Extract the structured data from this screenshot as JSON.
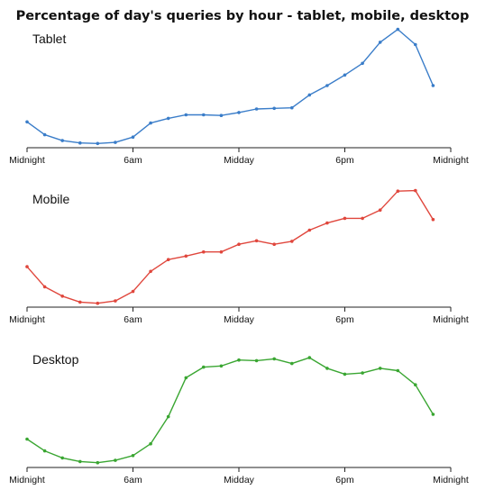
{
  "title": "Percentage of day's queries by hour - tablet, mobile, desktop",
  "chart_data": [
    {
      "type": "line",
      "title": "Tablet",
      "color": "#3a7dc9",
      "x": [
        0,
        1,
        2,
        3,
        4,
        5,
        6,
        7,
        8,
        9,
        10,
        11,
        12,
        13,
        14,
        15,
        16,
        17,
        18,
        19,
        20,
        21,
        22,
        23
      ],
      "x_ticks": [
        {
          "x": 0,
          "label": "Midnight"
        },
        {
          "x": 6,
          "label": "6am"
        },
        {
          "x": 12,
          "label": "Midday"
        },
        {
          "x": 18,
          "label": "6pm"
        },
        {
          "x": 24,
          "label": "Midnight"
        }
      ],
      "xlim": [
        0,
        24
      ],
      "ylim": [
        0,
        100
      ],
      "values": [
        19,
        8,
        3,
        1,
        0.5,
        1.5,
        6,
        18,
        22,
        25,
        25,
        24.5,
        27,
        30,
        30.5,
        31,
        42,
        50,
        59,
        69,
        87,
        98,
        85,
        50
      ],
      "grid": false
    },
    {
      "type": "line",
      "title": "Mobile",
      "color": "#e0473d",
      "x": [
        0,
        1,
        2,
        3,
        4,
        5,
        6,
        7,
        8,
        9,
        10,
        11,
        12,
        13,
        14,
        15,
        16,
        17,
        18,
        19,
        20,
        21,
        22,
        23
      ],
      "x_ticks": [
        {
          "x": 0,
          "label": "Midnight"
        },
        {
          "x": 6,
          "label": "6am"
        },
        {
          "x": 12,
          "label": "Midday"
        },
        {
          "x": 18,
          "label": "6pm"
        },
        {
          "x": 24,
          "label": "Midnight"
        }
      ],
      "xlim": [
        0,
        24
      ],
      "ylim": [
        0,
        100
      ],
      "values": [
        32,
        15,
        7,
        2,
        1,
        3,
        11,
        28,
        38,
        41,
        44.5,
        44.5,
        51,
        54,
        51,
        53.5,
        63,
        69,
        73,
        73,
        80,
        96,
        96.5,
        72
      ],
      "grid": false
    },
    {
      "type": "line",
      "title": "Desktop",
      "color": "#3aa632",
      "x": [
        0,
        1,
        2,
        3,
        4,
        5,
        6,
        7,
        8,
        9,
        10,
        11,
        12,
        13,
        14,
        15,
        16,
        17,
        18,
        19,
        20,
        21,
        22,
        23
      ],
      "x_ticks": [
        {
          "x": 0,
          "label": "Midnight"
        },
        {
          "x": 6,
          "label": "6am"
        },
        {
          "x": 12,
          "label": "Midday"
        },
        {
          "x": 18,
          "label": "6pm"
        },
        {
          "x": 24,
          "label": "Midnight"
        }
      ],
      "xlim": [
        0,
        24
      ],
      "ylim": [
        0,
        100
      ],
      "values": [
        21,
        11,
        5,
        2,
        1,
        3,
        7,
        17,
        40,
        73,
        82,
        83,
        88,
        87.5,
        89,
        85,
        90,
        81,
        76,
        77,
        81,
        79,
        67,
        42
      ],
      "grid": false
    }
  ]
}
